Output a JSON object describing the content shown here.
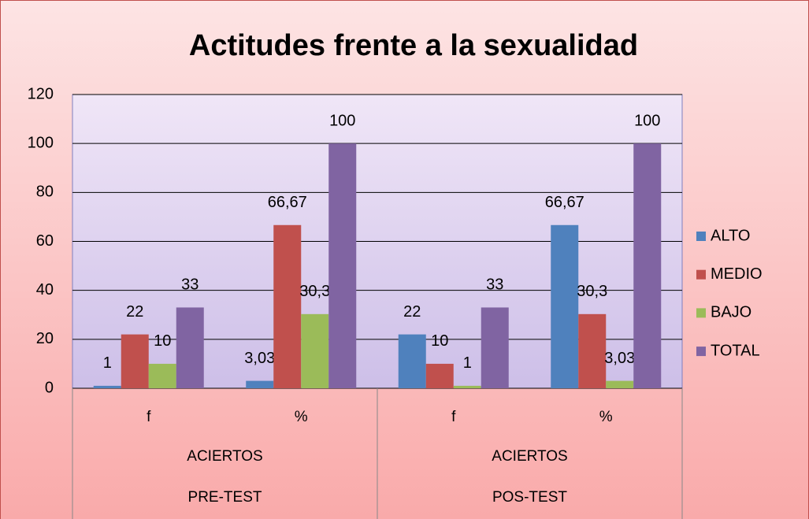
{
  "chart_data": {
    "type": "bar",
    "title": "Actitudes frente a la sexualidad",
    "categories": [
      "f",
      "%",
      "f",
      "%"
    ],
    "category_levels": [
      [
        "ACIERTOS",
        "ACIERTOS"
      ],
      [
        "PRE-TEST",
        "POS-TEST"
      ]
    ],
    "series": [
      {
        "name": "ALTO",
        "color": "#4f81bd",
        "values": [
          1,
          3.03,
          22,
          66.67
        ],
        "value_labels": [
          "1",
          "3,03",
          "22",
          "66,67"
        ]
      },
      {
        "name": "MEDIO",
        "color": "#c0504d",
        "values": [
          22,
          66.67,
          10,
          30.3
        ],
        "value_labels": [
          "22",
          "66,67",
          "10",
          "30,3"
        ]
      },
      {
        "name": "BAJO",
        "color": "#9bbb59",
        "values": [
          10,
          30.3,
          1,
          3.03
        ],
        "value_labels": [
          "10",
          "30,3",
          "1",
          "3,03"
        ]
      },
      {
        "name": "TOTAL",
        "color": "#8064a2",
        "values": [
          33,
          100,
          33,
          100
        ],
        "value_labels": [
          "33",
          "100",
          "33",
          "100"
        ]
      }
    ],
    "ylim": [
      0,
      120
    ],
    "yticks": [
      0,
      20,
      40,
      60,
      80,
      100,
      120
    ],
    "grid": true,
    "legend": "right"
  }
}
